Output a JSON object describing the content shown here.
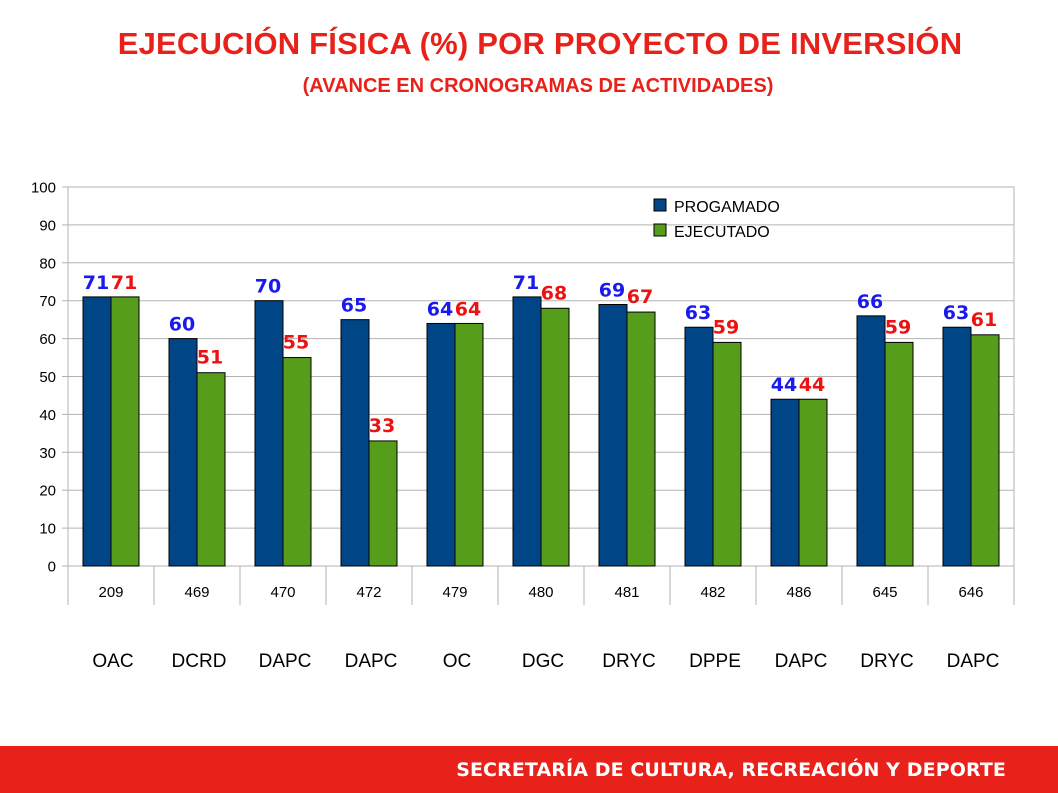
{
  "title": "EJECUCIÓN FÍSICA (%) POR PROYECTO DE INVERSIÓN",
  "subtitle": "(AVANCE EN CRONOGRAMAS DE ACTIVIDADES)",
  "footer": "SECRETARÍA DE CULTURA, RECREACIÓN Y DEPORTE",
  "colors": {
    "accent": "#e8211a",
    "programado": "#004586",
    "ejecutado": "#579d1c",
    "label_programado": "#1a1aee",
    "label_ejecutado": "#ee1111"
  },
  "chart_data": {
    "type": "bar",
    "title": "",
    "xlabel": "",
    "ylabel": "",
    "ylim": [
      0,
      100
    ],
    "yticks": [
      "0",
      "10",
      "20",
      "30",
      "40",
      "50",
      "60",
      "70",
      "80",
      "90",
      "100"
    ],
    "grid": true,
    "legend": "top-right",
    "categories": [
      "209",
      "469",
      "470",
      "472",
      "479",
      "480",
      "481",
      "482",
      "486",
      "645",
      "646"
    ],
    "groups": [
      "OAC",
      "DCRD",
      "DAPC",
      "DAPC",
      "OC",
      "DGC",
      "DRYC",
      "DPPE",
      "DAPC",
      "DRYC",
      "DAPC"
    ],
    "series": [
      {
        "name": "PROGAMADO",
        "values": [
          71,
          60,
          70,
          65,
          64,
          71,
          69,
          63,
          44,
          66,
          63
        ]
      },
      {
        "name": "EJECUTADO",
        "values": [
          71,
          51,
          55,
          33,
          64,
          68,
          67,
          59,
          44,
          59,
          61
        ]
      }
    ]
  }
}
